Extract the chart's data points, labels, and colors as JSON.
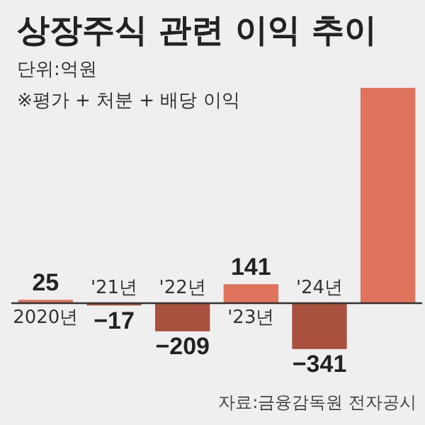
{
  "chart_data": {
    "type": "bar",
    "title": "상장주식 관련 이익 추이",
    "subtitle": "단위:억원",
    "annotations": [
      "※평가 + 처분 + 배당 이익",
      "자료:금융감독원 전자공시"
    ],
    "categories": [
      "2020년",
      "'21년",
      "'22년",
      "'23년",
      "'24년",
      null
    ],
    "values": [
      25,
      -17,
      -209,
      141,
      -341,
      1600
    ],
    "colors": [
      "#e0735c",
      "#a9503f",
      "#a9503f",
      "#e0735c",
      "#a9503f",
      "#e0735c"
    ],
    "value_labels": [
      "25",
      "−17",
      "−209",
      "141",
      "−341",
      null
    ]
  }
}
